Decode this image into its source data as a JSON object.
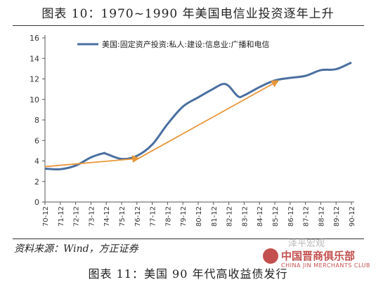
{
  "page": {
    "figure_title": "图表 10：1970~1990 年美国电信业投资逐年上升",
    "source_note": "资料来源：Wind，方正证券",
    "next_figure_title": "图表 11：美国 90 年代高收益债发行",
    "watermark": {
      "wechat": "泽平宏观",
      "club_name": "中国晋商俱乐部",
      "club_sub": "CHINA JIN MERCHANTS CLUB"
    }
  },
  "chart_data": {
    "type": "line",
    "title": "",
    "xlabel": "",
    "ylabel": "",
    "categories": [
      "70-12",
      "71-12",
      "72-12",
      "73-12",
      "74-12",
      "75-12",
      "76-12",
      "77-12",
      "78-12",
      "79-12",
      "80-12",
      "81-12",
      "82-12",
      "83-12",
      "84-12",
      "85-12",
      "86-12",
      "87-12",
      "88-12",
      "89-12",
      "90-12"
    ],
    "ylim": [
      0,
      16
    ],
    "yticks": [
      0,
      2,
      4,
      6,
      8,
      10,
      12,
      14,
      16
    ],
    "grid": false,
    "legend": "top-left",
    "series": [
      {
        "name": "美国:固定资产投资:私人:建设:信息业:广播和电信",
        "color": "#4a6fa0",
        "points": [
          [
            0,
            3.25
          ],
          [
            1,
            3.2
          ],
          [
            2,
            3.55
          ],
          [
            3,
            4.35
          ],
          [
            3.8,
            4.75
          ],
          [
            4,
            4.7
          ],
          [
            5,
            4.2
          ],
          [
            6,
            4.5
          ],
          [
            7,
            5.6
          ],
          [
            8,
            7.6
          ],
          [
            9,
            9.3
          ],
          [
            10,
            10.2
          ],
          [
            11,
            11.05
          ],
          [
            11.6,
            11.5
          ],
          [
            12,
            11.3
          ],
          [
            12.6,
            10.3
          ],
          [
            13,
            10.4
          ],
          [
            14,
            11.2
          ],
          [
            15,
            11.85
          ],
          [
            16,
            12.1
          ],
          [
            17,
            12.3
          ],
          [
            18,
            12.85
          ],
          [
            19,
            12.95
          ],
          [
            20,
            13.6
          ]
        ]
      }
    ],
    "annotations": [
      {
        "type": "arrow",
        "color": "#e8973a",
        "from": [
          0,
          3.45
        ],
        "to": [
          6.1,
          4.25
        ]
      },
      {
        "type": "arrow",
        "color": "#e8973a",
        "from": [
          6.1,
          4.25
        ],
        "to": [
          15.2,
          11.8
        ]
      }
    ]
  }
}
